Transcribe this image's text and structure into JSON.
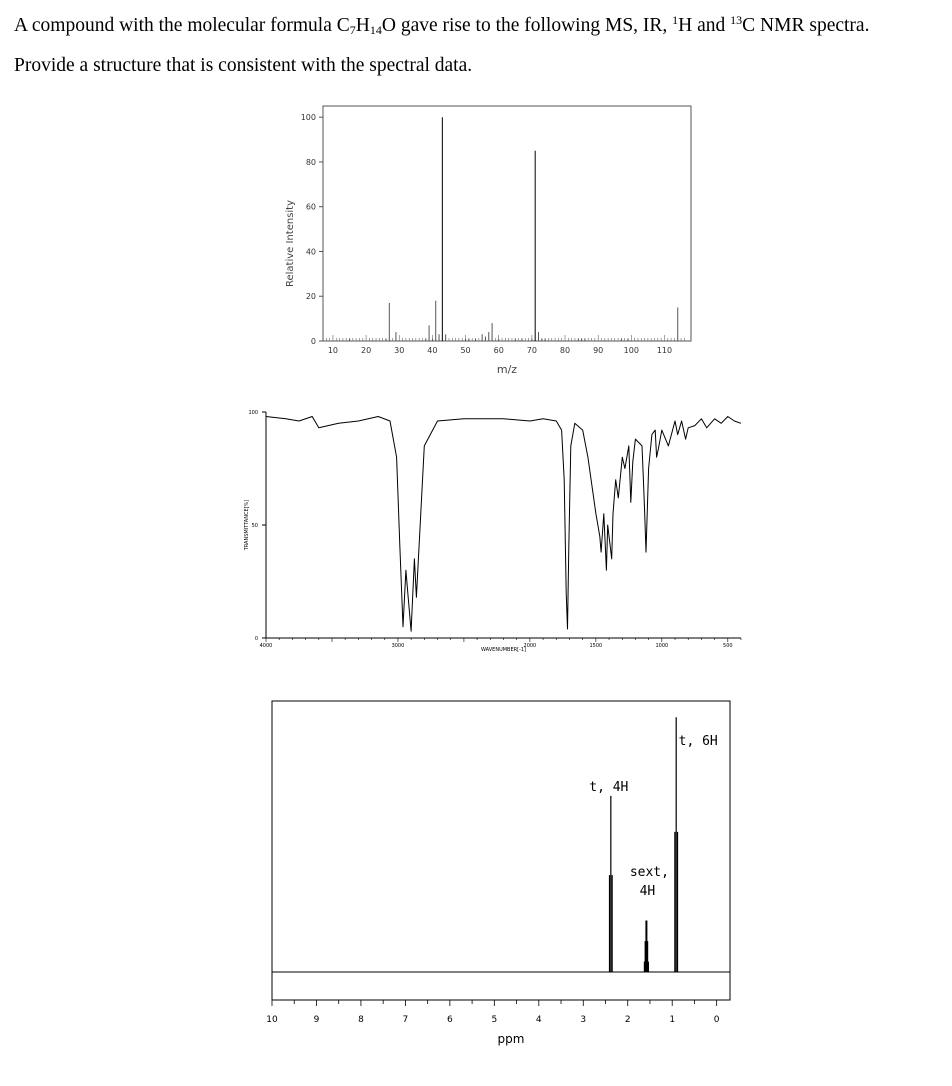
{
  "question": {
    "line1_a": "A compound with the molecular formula C",
    "c_count": "7",
    "mid_h": "H",
    "h_count": "14",
    "line1_b": "O gave rise to the following MS, IR, ",
    "h_sup": "1",
    "line1_c": "H and ",
    "c_sup": "13",
    "line1_d": "C NMR spectra.",
    "line2": "Provide a structure that is consistent with the spectral data."
  },
  "chart_data": [
    {
      "type": "bar",
      "name": "mass-spectrum",
      "ylabel": "Relative Intensity",
      "xlabel": "m/z",
      "xlim": [
        7,
        118
      ],
      "ylim": [
        0,
        105
      ],
      "xticks": [
        10,
        20,
        30,
        40,
        50,
        60,
        70,
        80,
        90,
        100,
        110
      ],
      "yticks": [
        0,
        20,
        40,
        60,
        80,
        100
      ],
      "x": [
        15,
        26,
        27,
        29,
        38,
        39,
        40,
        41,
        42,
        43,
        44,
        50,
        51,
        53,
        55,
        56,
        57,
        58,
        60,
        65,
        67,
        70,
        71,
        72,
        73,
        74,
        84,
        85,
        86,
        97,
        99,
        114
      ],
      "values": [
        1,
        1,
        17,
        4,
        1,
        7,
        1,
        18,
        3,
        100,
        3,
        1,
        1,
        1,
        3,
        2,
        4,
        8,
        1,
        1,
        1,
        1,
        85,
        4,
        1,
        1,
        1,
        1,
        1,
        1,
        1,
        15
      ]
    },
    {
      "type": "line",
      "name": "ir-spectrum",
      "ylabel": "TRANSMITTANCE[%]",
      "xlabel": "WAVENUMBER[-1]",
      "xlim": [
        4000,
        400
      ],
      "ylim": [
        0,
        100
      ],
      "xticks": [
        4000,
        3000,
        2000,
        1500,
        1000,
        500
      ],
      "yticks": [
        0,
        50,
        100
      ],
      "x": [
        4000,
        3850,
        3750,
        3650,
        3600,
        3450,
        3300,
        3150,
        3060,
        3010,
        2985,
        2962,
        2940,
        2925,
        2900,
        2875,
        2860,
        2800,
        2700,
        2500,
        2200,
        2000,
        1900,
        1800,
        1760,
        1740,
        1725,
        1715,
        1705,
        1690,
        1660,
        1600,
        1560,
        1500,
        1470,
        1460,
        1440,
        1420,
        1410,
        1380,
        1370,
        1350,
        1330,
        1300,
        1280,
        1250,
        1235,
        1220,
        1200,
        1150,
        1140,
        1130,
        1120,
        1100,
        1075,
        1050,
        1040,
        1025,
        1000,
        950,
        900,
        880,
        850,
        820,
        800,
        750,
        700,
        660,
        600,
        550,
        500,
        450,
        400
      ],
      "values": [
        98,
        97,
        96,
        98,
        93,
        95,
        96,
        98,
        96,
        80,
        40,
        5,
        30,
        20,
        3,
        35,
        18,
        85,
        96,
        97,
        97,
        96,
        97,
        96,
        92,
        70,
        20,
        4,
        40,
        85,
        95,
        92,
        80,
        55,
        45,
        38,
        55,
        30,
        50,
        35,
        55,
        70,
        62,
        80,
        75,
        85,
        60,
        78,
        88,
        85,
        70,
        55,
        38,
        75,
        90,
        92,
        80,
        84,
        92,
        85,
        96,
        90,
        96,
        88,
        93,
        94,
        97,
        93,
        97,
        95,
        98,
        96,
        95
      ]
    },
    {
      "type": "line",
      "name": "h-nmr-spectrum",
      "xlabel": "ppm",
      "xlim": [
        10,
        -0.3
      ],
      "xticks": [
        10,
        9,
        8,
        7,
        6,
        5,
        4,
        3,
        2,
        1,
        0
      ],
      "peaks": [
        {
          "ppm": 2.38,
          "label": "t, 4H",
          "height": 0.65,
          "mult": 3
        },
        {
          "ppm": 1.58,
          "label_line1": "sext,",
          "label_line2": "4H",
          "height": 0.19,
          "mult": 6
        },
        {
          "ppm": 0.91,
          "label": "t, 6H",
          "height": 0.94,
          "mult": 3
        }
      ]
    }
  ]
}
